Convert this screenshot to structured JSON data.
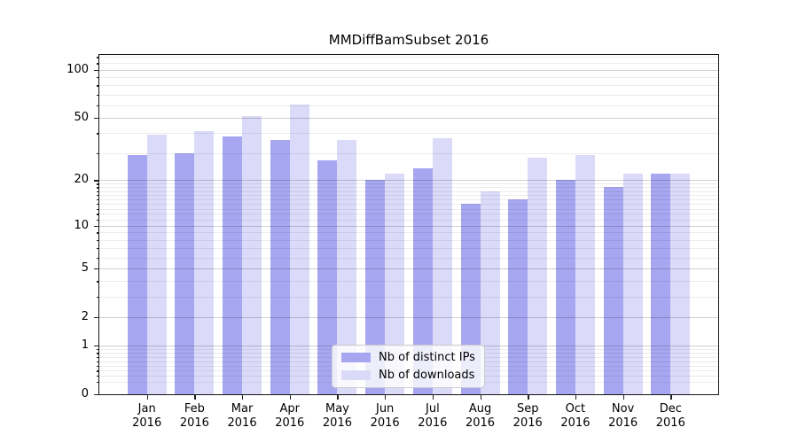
{
  "chart_data": {
    "type": "bar",
    "title": "MMDiffBamSubset 2016",
    "categories": [
      {
        "month": "Jan",
        "year": "2016"
      },
      {
        "month": "Feb",
        "year": "2016"
      },
      {
        "month": "Mar",
        "year": "2016"
      },
      {
        "month": "Apr",
        "year": "2016"
      },
      {
        "month": "May",
        "year": "2016"
      },
      {
        "month": "Jun",
        "year": "2016"
      },
      {
        "month": "Jul",
        "year": "2016"
      },
      {
        "month": "Aug",
        "year": "2016"
      },
      {
        "month": "Sep",
        "year": "2016"
      },
      {
        "month": "Oct",
        "year": "2016"
      },
      {
        "month": "Nov",
        "year": "2016"
      },
      {
        "month": "Dec",
        "year": "2016"
      }
    ],
    "series": [
      {
        "name": "Nb of distinct IPs",
        "color": "#a7a7f1",
        "values": [
          29,
          30,
          38,
          36,
          27,
          20,
          24,
          14,
          15,
          20,
          18,
          22
        ]
      },
      {
        "name": "Nb of downloads",
        "color": "#dbdbf9",
        "values": [
          39,
          41,
          51,
          61,
          36,
          22,
          37,
          17,
          28,
          29,
          22,
          22
        ]
      }
    ],
    "y_axis": {
      "scale": "log1p",
      "major_ticks": [
        0,
        1,
        2,
        5,
        10,
        20,
        50,
        100
      ],
      "minor_ticks": [
        0.2,
        0.3,
        0.4,
        0.5,
        0.6,
        0.7,
        0.8,
        0.9,
        3,
        4,
        6,
        7,
        8,
        9,
        11,
        12,
        13,
        14,
        15,
        16,
        17,
        18,
        19,
        30,
        40,
        60,
        70,
        80,
        90,
        110,
        120
      ],
      "ylim": [
        0,
        124
      ]
    },
    "legend_position": "lower center",
    "grid": "on",
    "colors": {
      "major_grid": "#cfcfcf",
      "minor_grid": "#e9e9e9",
      "spine": "#141414",
      "background": "#ffffff"
    }
  }
}
